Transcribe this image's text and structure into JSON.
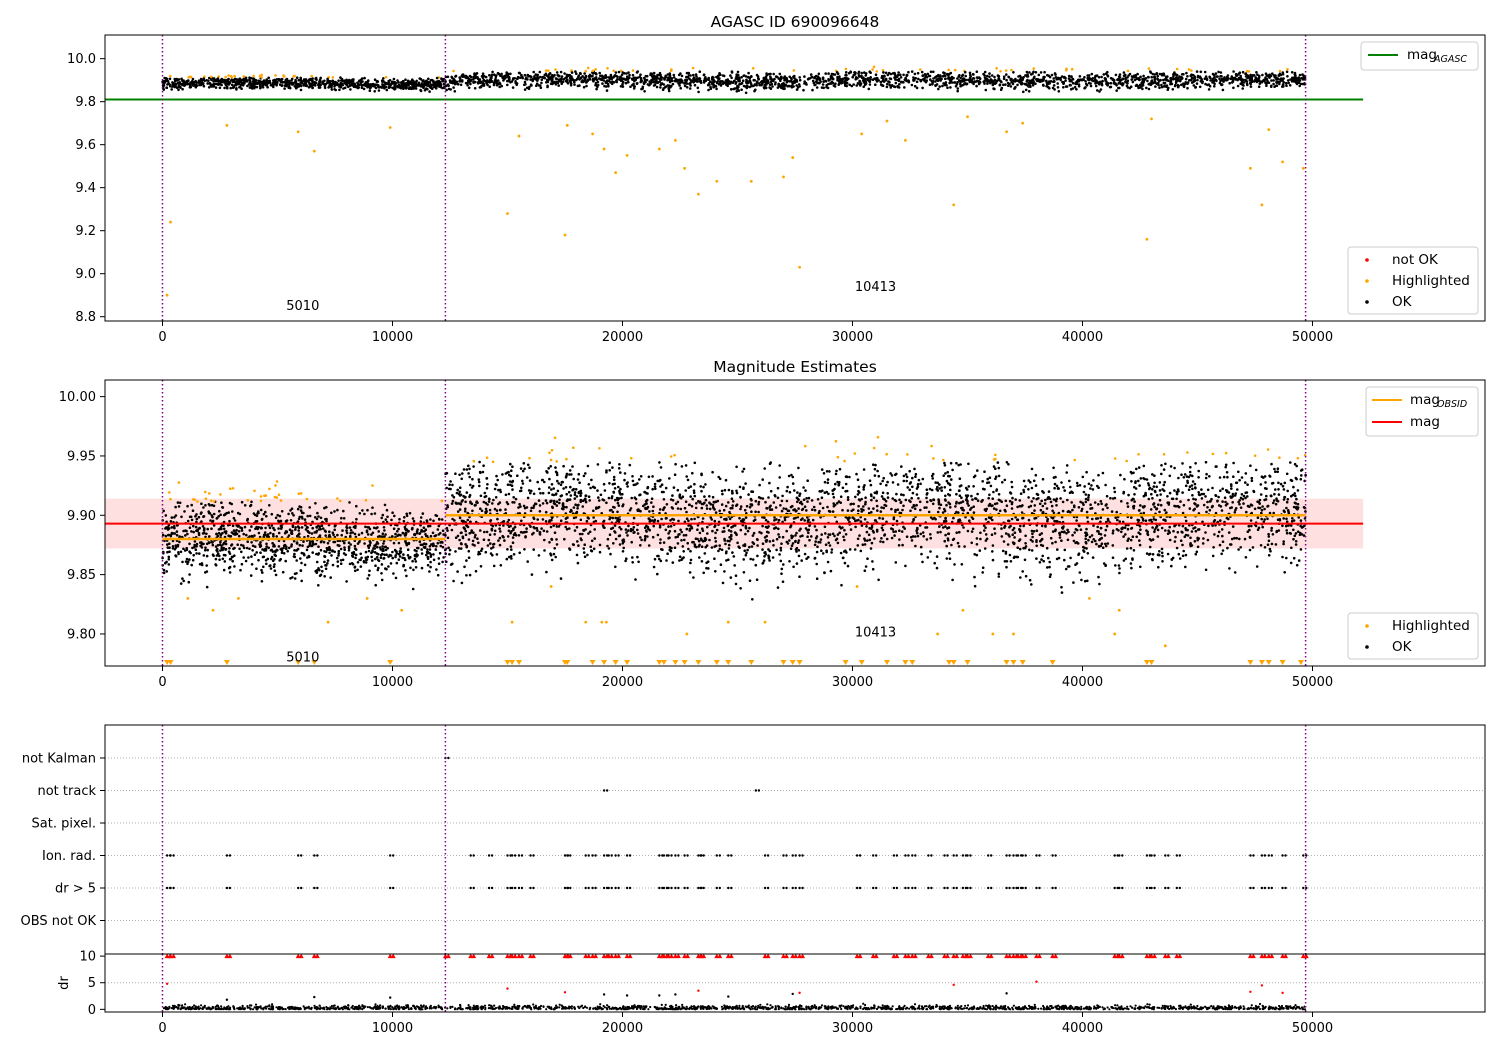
{
  "chart_data": [
    {
      "type": "scatter",
      "title": "AGASC ID 690096648",
      "xlabel": "",
      "ylabel": "",
      "xlim": [
        -2500,
        57500
      ],
      "ylim": [
        8.78,
        10.11
      ],
      "xticks": [
        0,
        10000,
        20000,
        30000,
        40000,
        50000
      ],
      "yticks": [
        8.8,
        9.0,
        9.2,
        9.4,
        9.6,
        9.8,
        10.0
      ],
      "ytick_labels": [
        "8.8",
        "9.0",
        "9.2",
        "9.4",
        "9.6",
        "9.8",
        "10.0"
      ],
      "vlines": [
        0,
        12300,
        49700
      ],
      "hline": {
        "name": "mag_AGASC",
        "y": 9.81,
        "x": [
          -2500,
          52200
        ],
        "color": "#008000"
      },
      "annotations": [
        {
          "text": "5010",
          "x": 6100,
          "y": 8.83
        },
        {
          "text": "10413",
          "x": 31000,
          "y": 8.92
        }
      ],
      "legends": [
        {
          "position": "top-right",
          "entries": [
            {
              "label": "mag",
              "sub": "AGASC",
              "kind": "line",
              "color": "#008000"
            }
          ]
        },
        {
          "position": "lower-right",
          "entries": [
            {
              "label": "not OK",
              "kind": "dot",
              "color": "#ff0000"
            },
            {
              "label": "Highlighted",
              "kind": "dot",
              "color": "#ffa500"
            },
            {
              "label": "OK",
              "kind": "dot",
              "color": "#000000"
            }
          ]
        }
      ],
      "segments": [
        {
          "x": [
            0,
            12300
          ],
          "center": 9.885,
          "halfwidth": 0.03
        },
        {
          "x": [
            12300,
            49700
          ],
          "center": 9.9,
          "halfwidth": 0.045
        }
      ],
      "outliers": [
        [
          200,
          8.9
        ],
        [
          350,
          9.24
        ],
        [
          2800,
          9.69
        ],
        [
          5900,
          9.66
        ],
        [
          6600,
          9.57
        ],
        [
          9900,
          9.68
        ],
        [
          15000,
          9.28
        ],
        [
          15500,
          9.64
        ],
        [
          17500,
          9.18
        ],
        [
          17600,
          9.69
        ],
        [
          18700,
          9.65
        ],
        [
          19200,
          9.58
        ],
        [
          19700,
          9.47
        ],
        [
          20200,
          9.55
        ],
        [
          21600,
          9.58
        ],
        [
          22300,
          9.62
        ],
        [
          22700,
          9.49
        ],
        [
          23300,
          9.37
        ],
        [
          24100,
          9.43
        ],
        [
          25600,
          9.43
        ],
        [
          27000,
          9.45
        ],
        [
          27400,
          9.54
        ],
        [
          27700,
          9.03
        ],
        [
          30400,
          9.65
        ],
        [
          31500,
          9.71
        ],
        [
          32300,
          9.62
        ],
        [
          34400,
          9.32
        ],
        [
          35000,
          9.73
        ],
        [
          36700,
          9.66
        ],
        [
          37400,
          9.7
        ],
        [
          42800,
          9.16
        ],
        [
          43000,
          9.72
        ],
        [
          47300,
          9.49
        ],
        [
          47800,
          9.32
        ],
        [
          48100,
          9.67
        ],
        [
          48700,
          9.52
        ],
        [
          49600,
          9.49
        ]
      ]
    },
    {
      "type": "scatter",
      "title": "Magnitude Estimates",
      "xlabel": "",
      "ylabel": "",
      "xlim": [
        -2500,
        57500
      ],
      "ylim": [
        9.773,
        10.014
      ],
      "xticks": [
        0,
        10000,
        20000,
        30000,
        40000,
        50000
      ],
      "yticks": [
        9.8,
        9.85,
        9.9,
        9.95,
        10.0
      ],
      "ytick_labels": [
        "9.80",
        "9.85",
        "9.90",
        "9.95",
        "10.00"
      ],
      "vlines": [
        0,
        12300,
        49700
      ],
      "mag": {
        "y": 9.893,
        "band": [
          9.872,
          9.914
        ],
        "x": [
          -2500,
          52200
        ],
        "color": "#ff0000"
      },
      "mag_obsid": [
        {
          "x": [
            0,
            12300
          ],
          "y": 9.88
        },
        {
          "x": [
            12300,
            49700
          ],
          "y": 9.9
        }
      ],
      "annotations": [
        {
          "text": "5010",
          "x": 6100,
          "y": 9.777
        },
        {
          "text": "10413",
          "x": 31000,
          "y": 9.798
        }
      ],
      "legends": [
        {
          "position": "top-right",
          "entries": [
            {
              "label": "mag",
              "sub": "OBSID",
              "kind": "line",
              "color": "#ffa500"
            },
            {
              "label": "mag",
              "sub": "",
              "kind": "line",
              "color": "#ff0000"
            }
          ]
        },
        {
          "position": "lower-right",
          "entries": [
            {
              "label": "Highlighted",
              "kind": "dot",
              "color": "#ffa500"
            },
            {
              "label": "OK",
              "kind": "dot",
              "color": "#000000"
            }
          ]
        }
      ],
      "segments": [
        {
          "x": [
            0,
            12300
          ],
          "center": 9.88,
          "halfwidth": 0.035
        },
        {
          "x": [
            12300,
            49700
          ],
          "center": 9.9,
          "halfwidth": 0.05
        }
      ],
      "outliers": [
        [
          1100,
          9.83
        ],
        [
          2200,
          9.82
        ],
        [
          3300,
          9.83
        ],
        [
          7200,
          9.81
        ],
        [
          8900,
          9.83
        ],
        [
          10400,
          9.82
        ],
        [
          15200,
          9.81
        ],
        [
          16900,
          9.84
        ],
        [
          18400,
          9.81
        ],
        [
          19100,
          9.81
        ],
        [
          19300,
          9.81
        ],
        [
          22800,
          9.8
        ],
        [
          24600,
          9.81
        ],
        [
          26200,
          9.81
        ],
        [
          30200,
          9.84
        ],
        [
          33700,
          9.8
        ],
        [
          34800,
          9.82
        ],
        [
          36100,
          9.8
        ],
        [
          37000,
          9.8
        ],
        [
          40300,
          9.83
        ],
        [
          41400,
          9.8
        ],
        [
          41600,
          9.82
        ],
        [
          43600,
          9.79
        ]
      ],
      "clipped_markers": [
        200,
        350,
        2800,
        5900,
        6600,
        9900,
        15000,
        15200,
        15500,
        17500,
        17600,
        18700,
        19200,
        19700,
        20200,
        21600,
        21800,
        22300,
        22700,
        23300,
        24100,
        24600,
        25600,
        27000,
        27400,
        27700,
        29700,
        30400,
        31500,
        32300,
        32600,
        34200,
        34400,
        35000,
        36700,
        37000,
        37400,
        38700,
        42800,
        43000,
        47300,
        47800,
        48100,
        48700,
        49500
      ]
    },
    {
      "type": "scatter",
      "title": "",
      "xlabel": "",
      "ylabel": "",
      "xlim": [
        -2500,
        57500
      ],
      "categories": [
        "not Kalman",
        "not track",
        "Sat. pixel.",
        "Ion. rad.",
        "dr > 5",
        "OBS not OK"
      ],
      "flags": {
        "not Kalman": [
          12300
        ],
        "not track": [
          19200,
          25800
        ],
        "Sat. pixel.": [],
        "Ion. rad.": [
          200,
          350,
          2800,
          5900,
          6600,
          9900,
          13400,
          14200,
          15000,
          15200,
          15500,
          16000,
          17500,
          17600,
          18400,
          18700,
          19200,
          19400,
          19700,
          20200,
          21600,
          21800,
          22000,
          22300,
          22700,
          23300,
          23400,
          24100,
          24600,
          26200,
          27000,
          27400,
          27700,
          30200,
          30900,
          31800,
          32300,
          32600,
          33300,
          34000,
          34400,
          34800,
          35000,
          35900,
          36700,
          37000,
          37200,
          37400,
          38000,
          38700,
          41400,
          41600,
          42800,
          43000,
          43600,
          44100,
          47300,
          47800,
          48100,
          48700,
          49600
        ],
        "dr > 5": [
          200,
          350,
          2800,
          5900,
          6600,
          9900,
          13400,
          14200,
          15000,
          15200,
          15500,
          16000,
          17500,
          17600,
          18400,
          18700,
          19200,
          19400,
          19700,
          20200,
          21600,
          21800,
          22000,
          22300,
          22700,
          23300,
          23400,
          24100,
          24600,
          26200,
          27000,
          27400,
          27700,
          30200,
          30900,
          31800,
          32300,
          32600,
          33300,
          34000,
          34400,
          34800,
          35000,
          35900,
          36700,
          37000,
          37200,
          37400,
          38000,
          38700,
          41400,
          41600,
          42800,
          43000,
          43600,
          44100,
          47300,
          47800,
          48100,
          48700,
          49600
        ],
        "OBS not OK": []
      },
      "vlines": [
        0,
        12300,
        49700
      ]
    },
    {
      "type": "scatter",
      "title": "",
      "xlabel": "",
      "ylabel": "dr",
      "xlim": [
        -2500,
        57500
      ],
      "ylim": [
        -0.5,
        10.4
      ],
      "xticks": [
        0,
        10000,
        20000,
        30000,
        40000,
        50000
      ],
      "yticks": [
        0,
        5,
        10
      ],
      "ytick_labels": [
        "0",
        "5",
        "10"
      ],
      "vlines": [
        0,
        12300,
        49700
      ],
      "capped_markers": [
        200,
        350,
        2800,
        5900,
        6600,
        9900,
        12300,
        13400,
        14200,
        15000,
        15200,
        15500,
        16000,
        17500,
        17600,
        18400,
        18700,
        19200,
        19400,
        19700,
        20200,
        21600,
        21800,
        22000,
        22300,
        22700,
        23300,
        23400,
        24100,
        24600,
        26200,
        27000,
        27400,
        27700,
        30200,
        30900,
        31800,
        32300,
        32600,
        33300,
        34000,
        34400,
        34800,
        35000,
        35900,
        36700,
        37000,
        37200,
        37400,
        38000,
        38700,
        41400,
        41600,
        42800,
        43000,
        43600,
        44100,
        47300,
        47800,
        48100,
        48700,
        49600
      ],
      "outliers": [
        [
          200,
          4.8
        ],
        [
          2800,
          1.8
        ],
        [
          6600,
          2.3
        ],
        [
          9900,
          2.2
        ],
        [
          15000,
          3.9
        ],
        [
          17500,
          3.2
        ],
        [
          19200,
          2.8
        ],
        [
          20200,
          2.6
        ],
        [
          21600,
          2.6
        ],
        [
          22300,
          2.8
        ],
        [
          23300,
          3.5
        ],
        [
          24600,
          2.4
        ],
        [
          27400,
          2.9
        ],
        [
          27700,
          3.1
        ],
        [
          34400,
          4.6
        ],
        [
          36700,
          3.0
        ],
        [
          38000,
          5.2
        ],
        [
          47300,
          3.3
        ],
        [
          47800,
          4.5
        ],
        [
          48700,
          3.1
        ]
      ]
    }
  ]
}
